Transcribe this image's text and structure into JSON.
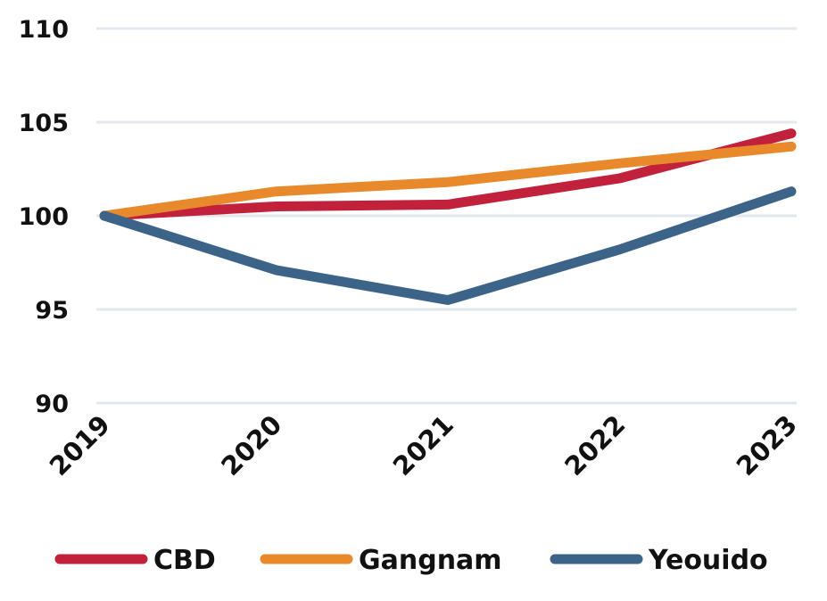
{
  "chart_data": {
    "type": "line",
    "title": "",
    "xlabel": "",
    "ylabel": "",
    "x": [
      "2019",
      "2020",
      "2021",
      "2022",
      "2023"
    ],
    "ylim": [
      90,
      110
    ],
    "yticks": [
      110,
      105,
      100,
      95,
      90
    ],
    "grid": "horizontal",
    "legend_position": "bottom",
    "series": [
      {
        "name": "CBD",
        "color": "#c1213a",
        "values": [
          100,
          100.5,
          100.6,
          102.0,
          104.4
        ]
      },
      {
        "name": "Gangnam",
        "color": "#e8892c",
        "values": [
          100,
          101.3,
          101.8,
          102.8,
          103.7
        ]
      },
      {
        "name": "Yeouido",
        "color": "#3b6488",
        "values": [
          100,
          97.1,
          95.5,
          98.2,
          101.3
        ]
      }
    ]
  }
}
